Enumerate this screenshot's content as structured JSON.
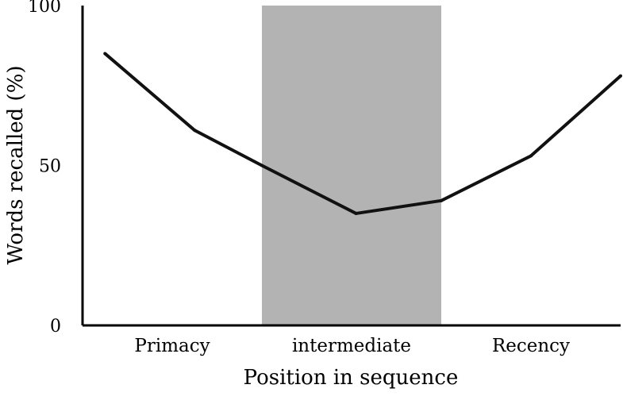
{
  "chart_data": {
    "type": "line",
    "title": "",
    "xlabel": "Position in sequence",
    "ylabel": "Words recalled (%)",
    "ylim": [
      0,
      100
    ],
    "yticks": [
      0,
      50,
      100
    ],
    "xlim": [
      1,
      7
    ],
    "categories": [
      {
        "label": "Primacy",
        "x": 2
      },
      {
        "label": "intermediate",
        "x": 4
      },
      {
        "label": "Recency",
        "x": 6
      }
    ],
    "shaded_region": {
      "x": [
        3,
        5
      ],
      "color": "#b3b3b3"
    },
    "series": [
      {
        "color": "#111111",
        "x": [
          1.25,
          2.25,
          3,
          4.05,
          5,
          6,
          7
        ],
        "y": [
          85,
          61,
          50,
          35,
          39,
          53,
          78
        ]
      }
    ],
    "grid": false,
    "legend": "none"
  }
}
